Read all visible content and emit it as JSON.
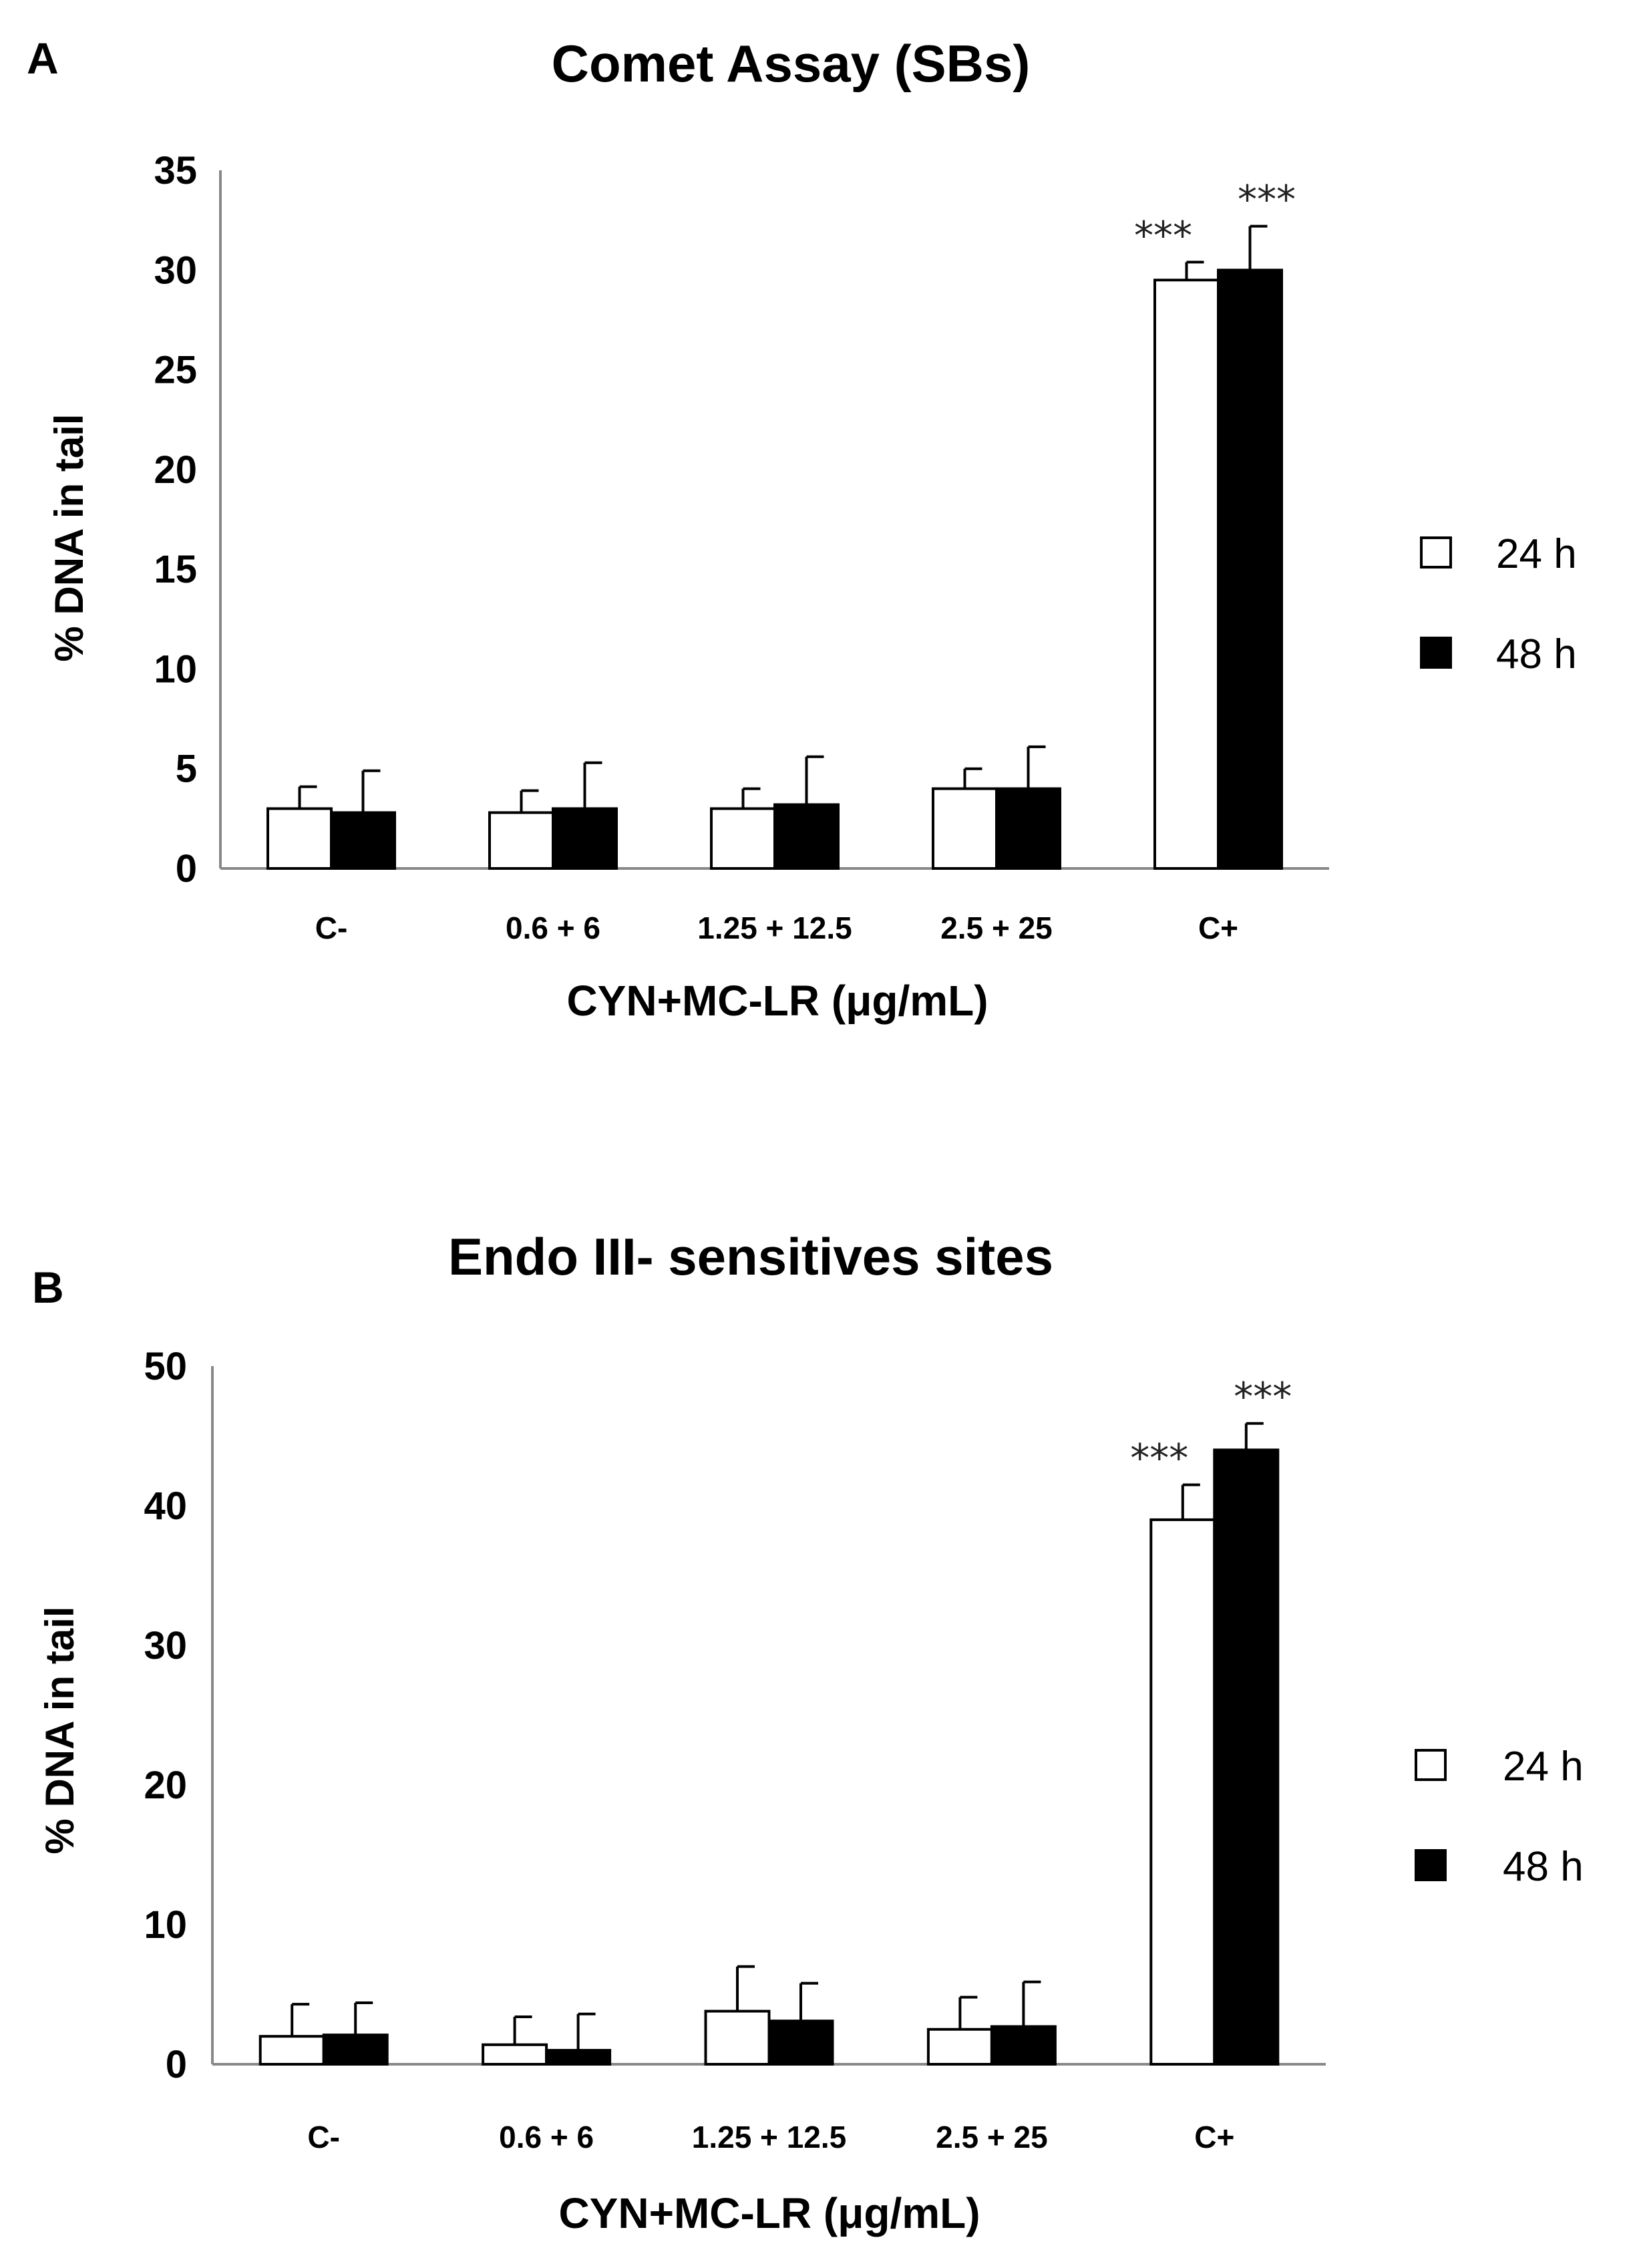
{
  "chart_data": [
    {
      "panel": "A",
      "type": "bar",
      "title": "Comet Assay (SBs)",
      "xlabel": "CYN+MC-LR (μg/mL)",
      "ylabel": "% DNA in tail",
      "ylim": [
        0,
        35
      ],
      "yticks": [
        0,
        5,
        10,
        15,
        20,
        25,
        30,
        35
      ],
      "categories": [
        "C-",
        "0.6 + 6",
        "1.25 + 12.5",
        "2.5 + 25",
        "C+"
      ],
      "legend_position": "right",
      "series": [
        {
          "name": "24 h",
          "color": "#ffffff",
          "values": [
            3.0,
            2.8,
            3.0,
            4.0,
            29.5
          ],
          "errors": [
            1.1,
            1.1,
            1.0,
            1.0,
            0.9
          ]
        },
        {
          "name": "48 h",
          "color": "#000000",
          "values": [
            2.8,
            3.0,
            3.2,
            4.0,
            30.0
          ],
          "errors": [
            2.1,
            2.3,
            2.4,
            2.1,
            2.2
          ]
        }
      ],
      "annotations": [
        {
          "category": "C+",
          "series": "24 h",
          "text": "***"
        },
        {
          "category": "C+",
          "series": "48 h",
          "text": "***"
        }
      ],
      "grid": false
    },
    {
      "panel": "B",
      "type": "bar",
      "title": "Endo III- sensitives sites",
      "xlabel": "CYN+MC-LR (μg/mL)",
      "ylabel": "% DNA in tail",
      "ylim": [
        0,
        50
      ],
      "yticks": [
        0,
        10,
        20,
        30,
        40,
        50
      ],
      "categories": [
        "C-",
        "0.6 + 6",
        "1.25 + 12.5",
        "2.5 + 25",
        "C+"
      ],
      "legend_position": "right",
      "series": [
        {
          "name": "24 h",
          "color": "#ffffff",
          "values": [
            2.0,
            1.4,
            3.8,
            2.5,
            39.0
          ],
          "errors": [
            2.3,
            2.0,
            3.2,
            2.3,
            2.5
          ]
        },
        {
          "name": "48 h",
          "color": "#000000",
          "values": [
            2.1,
            1.0,
            3.1,
            2.7,
            44.0
          ],
          "errors": [
            2.3,
            2.6,
            2.7,
            3.2,
            1.9
          ]
        }
      ],
      "annotations": [
        {
          "category": "C+",
          "series": "24 h",
          "text": "***"
        },
        {
          "category": "C+",
          "series": "48 h",
          "text": "***"
        }
      ],
      "grid": false
    }
  ]
}
